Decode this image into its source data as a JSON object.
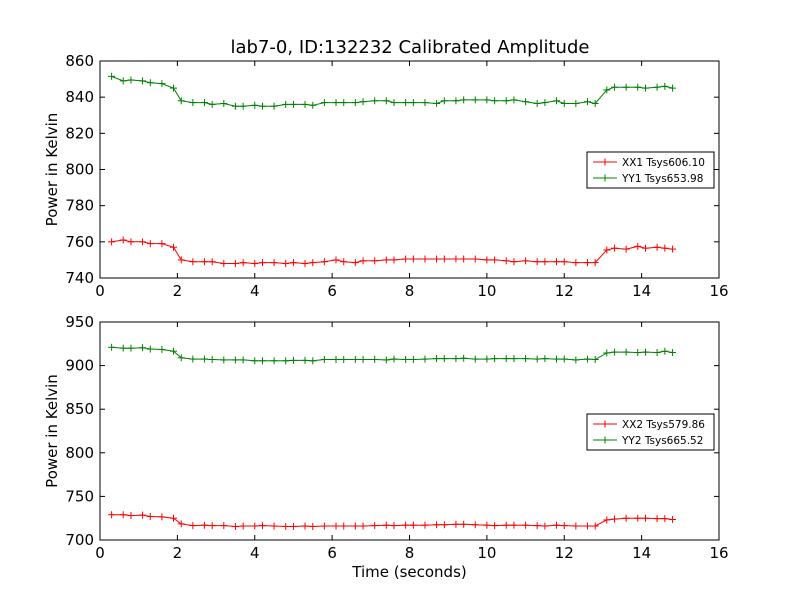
{
  "figure": {
    "title": "lab7-0, ID:132232 Calibrated Amplitude"
  },
  "chart_data": [
    {
      "type": "line",
      "title": "lab7-0, ID:132232 Calibrated Amplitude",
      "xlabel": "",
      "ylabel": "Power in Kelvin",
      "xlim": [
        0,
        16
      ],
      "ylim": [
        740,
        860
      ],
      "xticks": [
        "0",
        "2",
        "4",
        "6",
        "8",
        "10",
        "12",
        "14",
        "16"
      ],
      "yticks": [
        "740",
        "760",
        "780",
        "800",
        "820",
        "840",
        "860"
      ],
      "grid": false,
      "legend_position": "center-right",
      "marker": "+",
      "x": [
        0.3,
        0.6,
        0.8,
        1.1,
        1.3,
        1.6,
        1.9,
        2.1,
        2.4,
        2.7,
        2.9,
        3.2,
        3.5,
        3.7,
        4.0,
        4.2,
        4.5,
        4.8,
        5.0,
        5.3,
        5.5,
        5.8,
        6.1,
        6.3,
        6.6,
        6.8,
        7.1,
        7.4,
        7.6,
        7.9,
        8.1,
        8.4,
        8.7,
        8.9,
        9.2,
        9.4,
        9.7,
        10.0,
        10.2,
        10.5,
        10.7,
        11.0,
        11.3,
        11.5,
        11.8,
        12.0,
        12.3,
        12.6,
        12.8,
        13.1,
        13.3,
        13.6,
        13.9,
        14.1,
        14.4,
        14.6,
        14.8
      ],
      "series": [
        {
          "name": "XX1 Tsys606.10",
          "color": "#ff0000",
          "values": [
            760,
            761,
            760,
            760,
            759,
            759,
            757,
            750,
            749,
            749,
            749,
            748,
            748,
            748.5,
            748,
            748.5,
            748.5,
            748,
            748.5,
            748,
            748.5,
            749,
            750,
            749,
            748.5,
            749.5,
            749.5,
            750,
            750,
            750.5,
            750.5,
            750.5,
            750.5,
            750.5,
            750.5,
            750.5,
            750.5,
            750,
            750,
            749.5,
            749,
            749.5,
            749,
            749,
            749,
            749,
            748.5,
            748.5,
            748.5,
            755.5,
            756.5,
            756,
            757.5,
            756.5,
            757,
            756.5,
            756
          ]
        },
        {
          "name": "YY1 Tsys653.98",
          "color": "#008000",
          "values": [
            851.5,
            849,
            849.5,
            849,
            848,
            847.5,
            845,
            838,
            837,
            837,
            836,
            836.5,
            835,
            835,
            835.5,
            835,
            835,
            836,
            836,
            836,
            835.5,
            837,
            837,
            837,
            837,
            837.5,
            838,
            838,
            837,
            837,
            837,
            837,
            836.5,
            838,
            838,
            838.5,
            838.5,
            838.5,
            838,
            838,
            838.5,
            837.5,
            836.5,
            837,
            838,
            836.5,
            836.5,
            837.5,
            836.5,
            844,
            845.5,
            845.5,
            845.5,
            845,
            845.5,
            846,
            845
          ]
        }
      ]
    },
    {
      "type": "line",
      "title": "",
      "xlabel": "Time (seconds)",
      "ylabel": "Power in Kelvin",
      "xlim": [
        0,
        16
      ],
      "ylim": [
        700,
        950
      ],
      "xticks": [
        "0",
        "2",
        "4",
        "6",
        "8",
        "10",
        "12",
        "14",
        "16"
      ],
      "yticks": [
        "700",
        "750",
        "800",
        "850",
        "900",
        "950"
      ],
      "grid": false,
      "legend_position": "center-right",
      "marker": "+",
      "x": [
        0.3,
        0.6,
        0.8,
        1.1,
        1.3,
        1.6,
        1.9,
        2.1,
        2.4,
        2.7,
        2.9,
        3.2,
        3.5,
        3.7,
        4.0,
        4.2,
        4.5,
        4.8,
        5.0,
        5.3,
        5.5,
        5.8,
        6.1,
        6.3,
        6.6,
        6.8,
        7.1,
        7.4,
        7.6,
        7.9,
        8.1,
        8.4,
        8.7,
        8.9,
        9.2,
        9.4,
        9.7,
        10.0,
        10.2,
        10.5,
        10.7,
        11.0,
        11.3,
        11.5,
        11.8,
        12.0,
        12.3,
        12.6,
        12.8,
        13.1,
        13.3,
        13.6,
        13.9,
        14.1,
        14.4,
        14.6,
        14.8
      ],
      "series": [
        {
          "name": "XX2 Tsys579.86",
          "color": "#ff0000",
          "values": [
            729,
            729,
            728,
            728.5,
            727,
            726.5,
            725,
            718.5,
            716.5,
            717,
            716.5,
            716.5,
            715.5,
            716,
            716,
            716.5,
            716,
            715.5,
            715.5,
            716,
            715.5,
            716,
            716,
            716,
            716,
            716,
            716.5,
            717,
            716.5,
            717,
            717,
            717,
            717.5,
            717.5,
            718,
            718,
            717.5,
            717,
            716.5,
            717,
            717,
            717,
            716.5,
            716,
            717,
            716.5,
            716,
            716,
            716,
            723,
            724,
            725,
            725,
            725,
            724.5,
            724.5,
            723.5
          ]
        },
        {
          "name": "YY2 Tsys665.52",
          "color": "#008000",
          "values": [
            921,
            920,
            920,
            920.5,
            919,
            918.5,
            916.5,
            909,
            907.5,
            907.5,
            907,
            906.5,
            906.5,
            906.5,
            905.5,
            905.5,
            905.5,
            905.5,
            906,
            906,
            905.5,
            907,
            907,
            907,
            907,
            907,
            907,
            906.5,
            907.5,
            907,
            907,
            907.5,
            908,
            908,
            908,
            908.5,
            907.5,
            907.5,
            908,
            908,
            908,
            908,
            907.5,
            908,
            907.5,
            907.5,
            906.5,
            907.5,
            907,
            914.5,
            915.5,
            915.5,
            915,
            915.5,
            915,
            916.5,
            915
          ]
        }
      ]
    }
  ]
}
